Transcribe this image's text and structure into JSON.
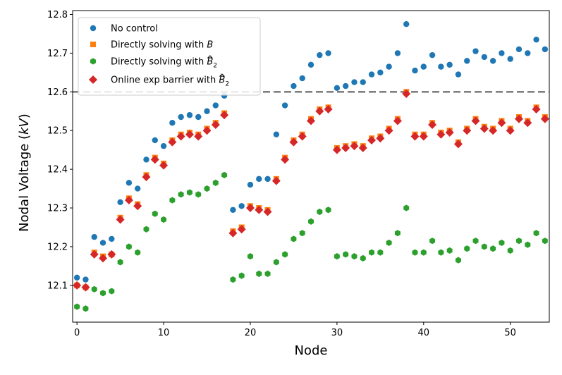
{
  "chart_data": {
    "type": "scatter",
    "xlabel": "Node",
    "ylabel_prefix": "Nodal Voltage (",
    "ylabel_unit": "kV",
    "ylabel_suffix": ")",
    "xlim": [
      -0.5,
      54.5
    ],
    "ylim": [
      12.005,
      12.81
    ],
    "xticks": [
      0,
      10,
      20,
      30,
      40,
      50
    ],
    "yticks": [
      12.1,
      12.2,
      12.3,
      12.4,
      12.5,
      12.6,
      12.7,
      12.8
    ],
    "reference_line": {
      "y": 12.6,
      "style": "dashed",
      "color": "#808080"
    },
    "legend_position": "top-left",
    "series": [
      {
        "name": "No control",
        "marker": "circle",
        "color": "#1f77b4",
        "values": [
          12.12,
          12.115,
          12.225,
          12.21,
          12.22,
          12.315,
          12.365,
          12.35,
          12.425,
          12.475,
          12.46,
          12.52,
          12.535,
          12.54,
          12.535,
          12.55,
          12.565,
          12.59,
          12.295,
          12.305,
          12.36,
          12.375,
          12.375,
          12.49,
          12.565,
          12.615,
          12.635,
          12.67,
          12.695,
          12.7,
          12.61,
          12.615,
          12.625,
          12.625,
          12.645,
          12.65,
          12.665,
          12.7,
          12.775,
          12.655,
          12.665,
          12.695,
          12.665,
          12.67,
          12.645,
          12.68,
          12.705,
          12.69,
          12.68,
          12.7,
          12.685,
          12.71,
          12.7,
          12.735,
          12.71
        ]
      },
      {
        "name_prefix": "Directly solving with ",
        "name_sym": "B",
        "marker": "square",
        "color": "#ff7f0e",
        "values": [
          12.1,
          12.095,
          12.185,
          12.175,
          12.18,
          12.275,
          12.325,
          12.31,
          12.385,
          12.43,
          12.415,
          12.475,
          12.49,
          12.495,
          12.49,
          12.505,
          12.52,
          12.545,
          12.24,
          12.25,
          12.305,
          12.3,
          12.295,
          12.375,
          12.43,
          12.475,
          12.49,
          12.53,
          12.555,
          12.56,
          12.455,
          12.46,
          12.465,
          12.46,
          12.48,
          12.485,
          12.505,
          12.53,
          12.6,
          12.49,
          12.49,
          12.52,
          12.495,
          12.5,
          12.47,
          12.505,
          12.53,
          12.51,
          12.505,
          12.525,
          12.505,
          12.535,
          12.525,
          12.56,
          12.535
        ]
      },
      {
        "name_prefix": "Directly solving with ",
        "name_sym": "B",
        "name_sub": "2",
        "marker": "hexagon",
        "color": "#2ca02c",
        "values": [
          12.045,
          12.04,
          12.09,
          12.08,
          12.085,
          12.16,
          12.2,
          12.185,
          12.245,
          12.285,
          12.27,
          12.32,
          12.335,
          12.34,
          12.335,
          12.35,
          12.365,
          12.385,
          12.115,
          12.125,
          12.175,
          12.13,
          12.13,
          12.16,
          12.18,
          12.22,
          12.235,
          12.265,
          12.29,
          12.295,
          12.175,
          12.18,
          12.175,
          12.17,
          12.185,
          12.185,
          12.21,
          12.235,
          12.3,
          12.185,
          12.185,
          12.215,
          12.185,
          12.19,
          12.165,
          12.195,
          12.215,
          12.2,
          12.195,
          12.21,
          12.19,
          12.215,
          12.205,
          12.235,
          12.215
        ]
      },
      {
        "name_prefix": "Online exp barrier with ",
        "name_sym": "B",
        "name_sub": "2",
        "marker": "diamond",
        "color": "#d62728",
        "values": [
          12.1,
          12.095,
          12.18,
          12.17,
          12.18,
          12.27,
          12.32,
          12.305,
          12.38,
          12.425,
          12.41,
          12.47,
          12.485,
          12.49,
          12.485,
          12.5,
          12.515,
          12.54,
          12.235,
          12.245,
          12.3,
          12.295,
          12.29,
          12.37,
          12.425,
          12.47,
          12.485,
          12.525,
          12.55,
          12.555,
          12.45,
          12.455,
          12.46,
          12.455,
          12.475,
          12.48,
          12.5,
          12.525,
          12.595,
          12.485,
          12.485,
          12.515,
          12.49,
          12.495,
          12.465,
          12.5,
          12.525,
          12.505,
          12.5,
          12.52,
          12.5,
          12.53,
          12.52,
          12.555,
          12.53
        ]
      }
    ]
  }
}
